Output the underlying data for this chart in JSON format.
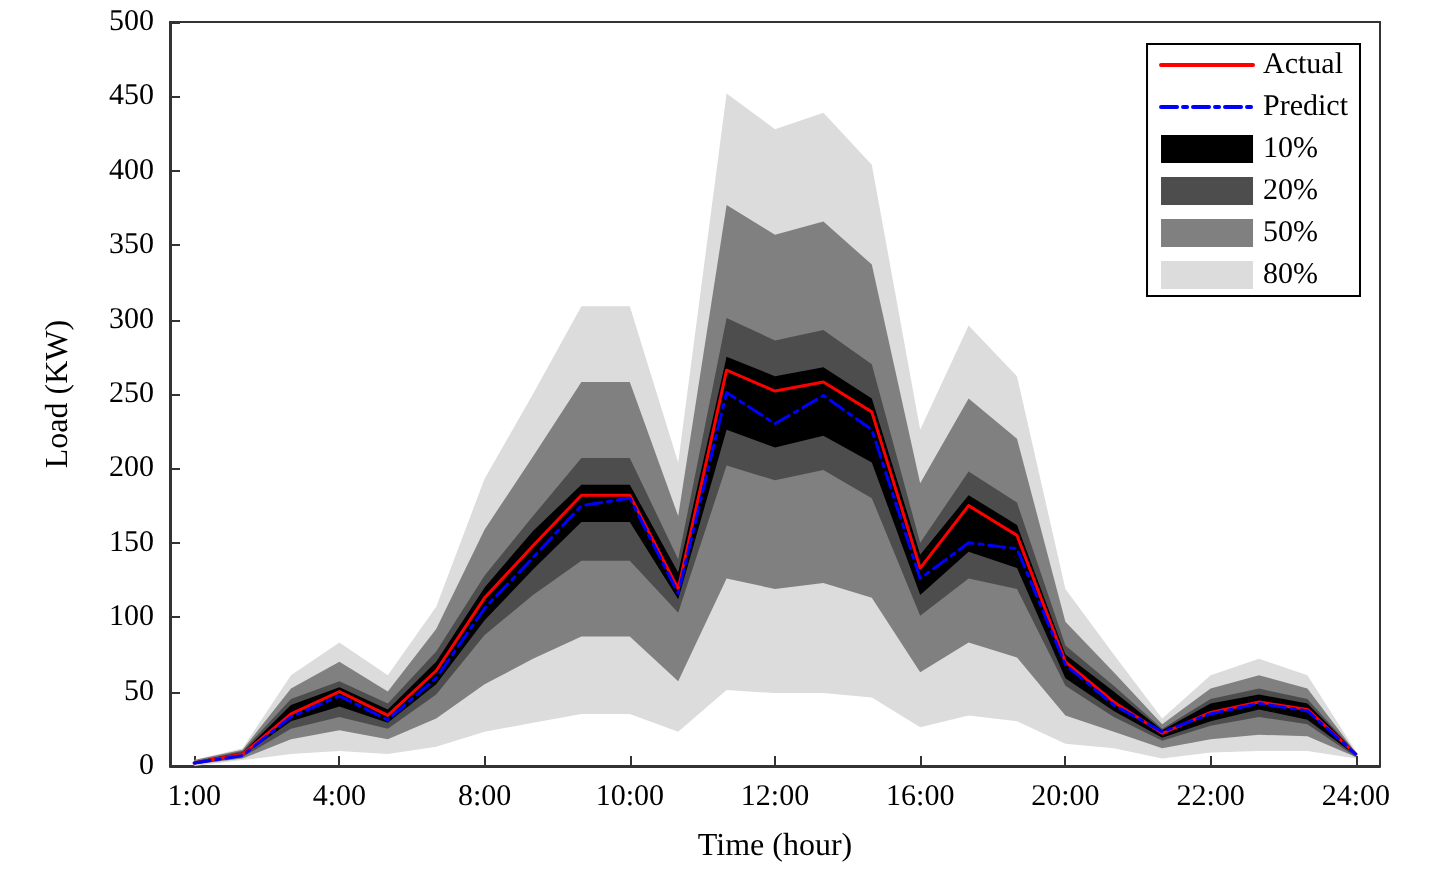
{
  "chart_data": {
    "type": "line",
    "xlabel": "Time (hour)",
    "ylabel": "Load (KW)",
    "categories": [
      "1:00",
      null,
      null,
      "4:00",
      null,
      null,
      "8:00",
      null,
      null,
      "10:00",
      null,
      null,
      "12:00",
      null,
      null,
      "16:00",
      null,
      null,
      "20:00",
      null,
      null,
      "22:00",
      null,
      null,
      "24:00"
    ],
    "ylim": [
      0,
      500
    ],
    "yticks": [
      0,
      50,
      100,
      150,
      200,
      250,
      300,
      350,
      400,
      450,
      500
    ],
    "grid": false,
    "legend": "top right",
    "marker": "none",
    "series": [
      {
        "name": "Actual",
        "type": "line",
        "color": "#ff0000",
        "line_style": "solid",
        "values": [
          2,
          8,
          35,
          50,
          34,
          64,
          113,
          148,
          182,
          182,
          119,
          266,
          252,
          258,
          238,
          133,
          175,
          155,
          70,
          43,
          22,
          36,
          43,
          38,
          8
        ]
      },
      {
        "name": "Predict",
        "type": "line",
        "color": "#0000ff",
        "line_style": "dashdot",
        "values": [
          2,
          7,
          33,
          47,
          31,
          59,
          106,
          140,
          175,
          180,
          116,
          251,
          230,
          249,
          226,
          126,
          150,
          146,
          68,
          41,
          23,
          35,
          42,
          37,
          8
        ]
      },
      {
        "name": "10%",
        "type": "area",
        "color": "#000000",
        "values": [
          null,
          null,
          null,
          null,
          null,
          null,
          null,
          null,
          null,
          null,
          null,
          null,
          null,
          null,
          null,
          null,
          null,
          null,
          null,
          null,
          null,
          null,
          null,
          null,
          null
        ],
        "upper": [
          3,
          9,
          41,
          53,
          38,
          70,
          120,
          158,
          189,
          189,
          130,
          275,
          262,
          268,
          247,
          142,
          182,
          162,
          75,
          50,
          24,
          42,
          48,
          42,
          9
        ],
        "lower": [
          1,
          7,
          30,
          40,
          29,
          55,
          98,
          132,
          164,
          164,
          112,
          226,
          214,
          222,
          204,
          115,
          144,
          133,
          59,
          37,
          19,
          30,
          38,
          31,
          7
        ]
      },
      {
        "name": "20%",
        "type": "area",
        "color": "#4d4d4d",
        "values": [
          null,
          null,
          null,
          null,
          null,
          null,
          null,
          null,
          null,
          null,
          null,
          null,
          null,
          null,
          null,
          null,
          null,
          null,
          null,
          null,
          null,
          null,
          null,
          null,
          null
        ],
        "upper": [
          3,
          10,
          45,
          57,
          42,
          77,
          128,
          168,
          207,
          207,
          139,
          301,
          286,
          293,
          270,
          150,
          198,
          177,
          81,
          54,
          25,
          45,
          52,
          45,
          9
        ],
        "lower": [
          1,
          6,
          25,
          33,
          25,
          48,
          88,
          115,
          138,
          138,
          103,
          202,
          192,
          199,
          180,
          101,
          126,
          119,
          54,
          33,
          17,
          27,
          33,
          28,
          6
        ]
      },
      {
        "name": "50%",
        "type": "area",
        "color": "#808080",
        "values": [
          null,
          null,
          null,
          null,
          null,
          null,
          null,
          null,
          null,
          null,
          null,
          null,
          null,
          null,
          null,
          null,
          null,
          null,
          null,
          null,
          null,
          null,
          null,
          null,
          null
        ],
        "upper": [
          4,
          11,
          52,
          70,
          50,
          92,
          159,
          208,
          258,
          258,
          168,
          377,
          357,
          366,
          337,
          190,
          247,
          220,
          97,
          63,
          28,
          52,
          61,
          52,
          9
        ],
        "lower": [
          1,
          5,
          18,
          24,
          18,
          32,
          55,
          72,
          87,
          87,
          57,
          126,
          119,
          123,
          113,
          63,
          83,
          73,
          34,
          23,
          12,
          18,
          21,
          20,
          6
        ]
      },
      {
        "name": "80%",
        "type": "area",
        "color": "#dcdcdc",
        "values": [
          null,
          null,
          null,
          null,
          null,
          null,
          null,
          null,
          null,
          null,
          null,
          null,
          null,
          null,
          null,
          null,
          null,
          null,
          null,
          null,
          null,
          null,
          null,
          null,
          null
        ],
        "upper": [
          4,
          12,
          61,
          83,
          61,
          107,
          193,
          250,
          309,
          309,
          204,
          452,
          428,
          439,
          404,
          226,
          296,
          262,
          119,
          75,
          32,
          61,
          72,
          61,
          10
        ],
        "lower": [
          0,
          4,
          8,
          10,
          8,
          13,
          23,
          29,
          35,
          35,
          23,
          51,
          49,
          49,
          46,
          26,
          34,
          30,
          15,
          12,
          5,
          9,
          10,
          10,
          5
        ]
      }
    ]
  }
}
